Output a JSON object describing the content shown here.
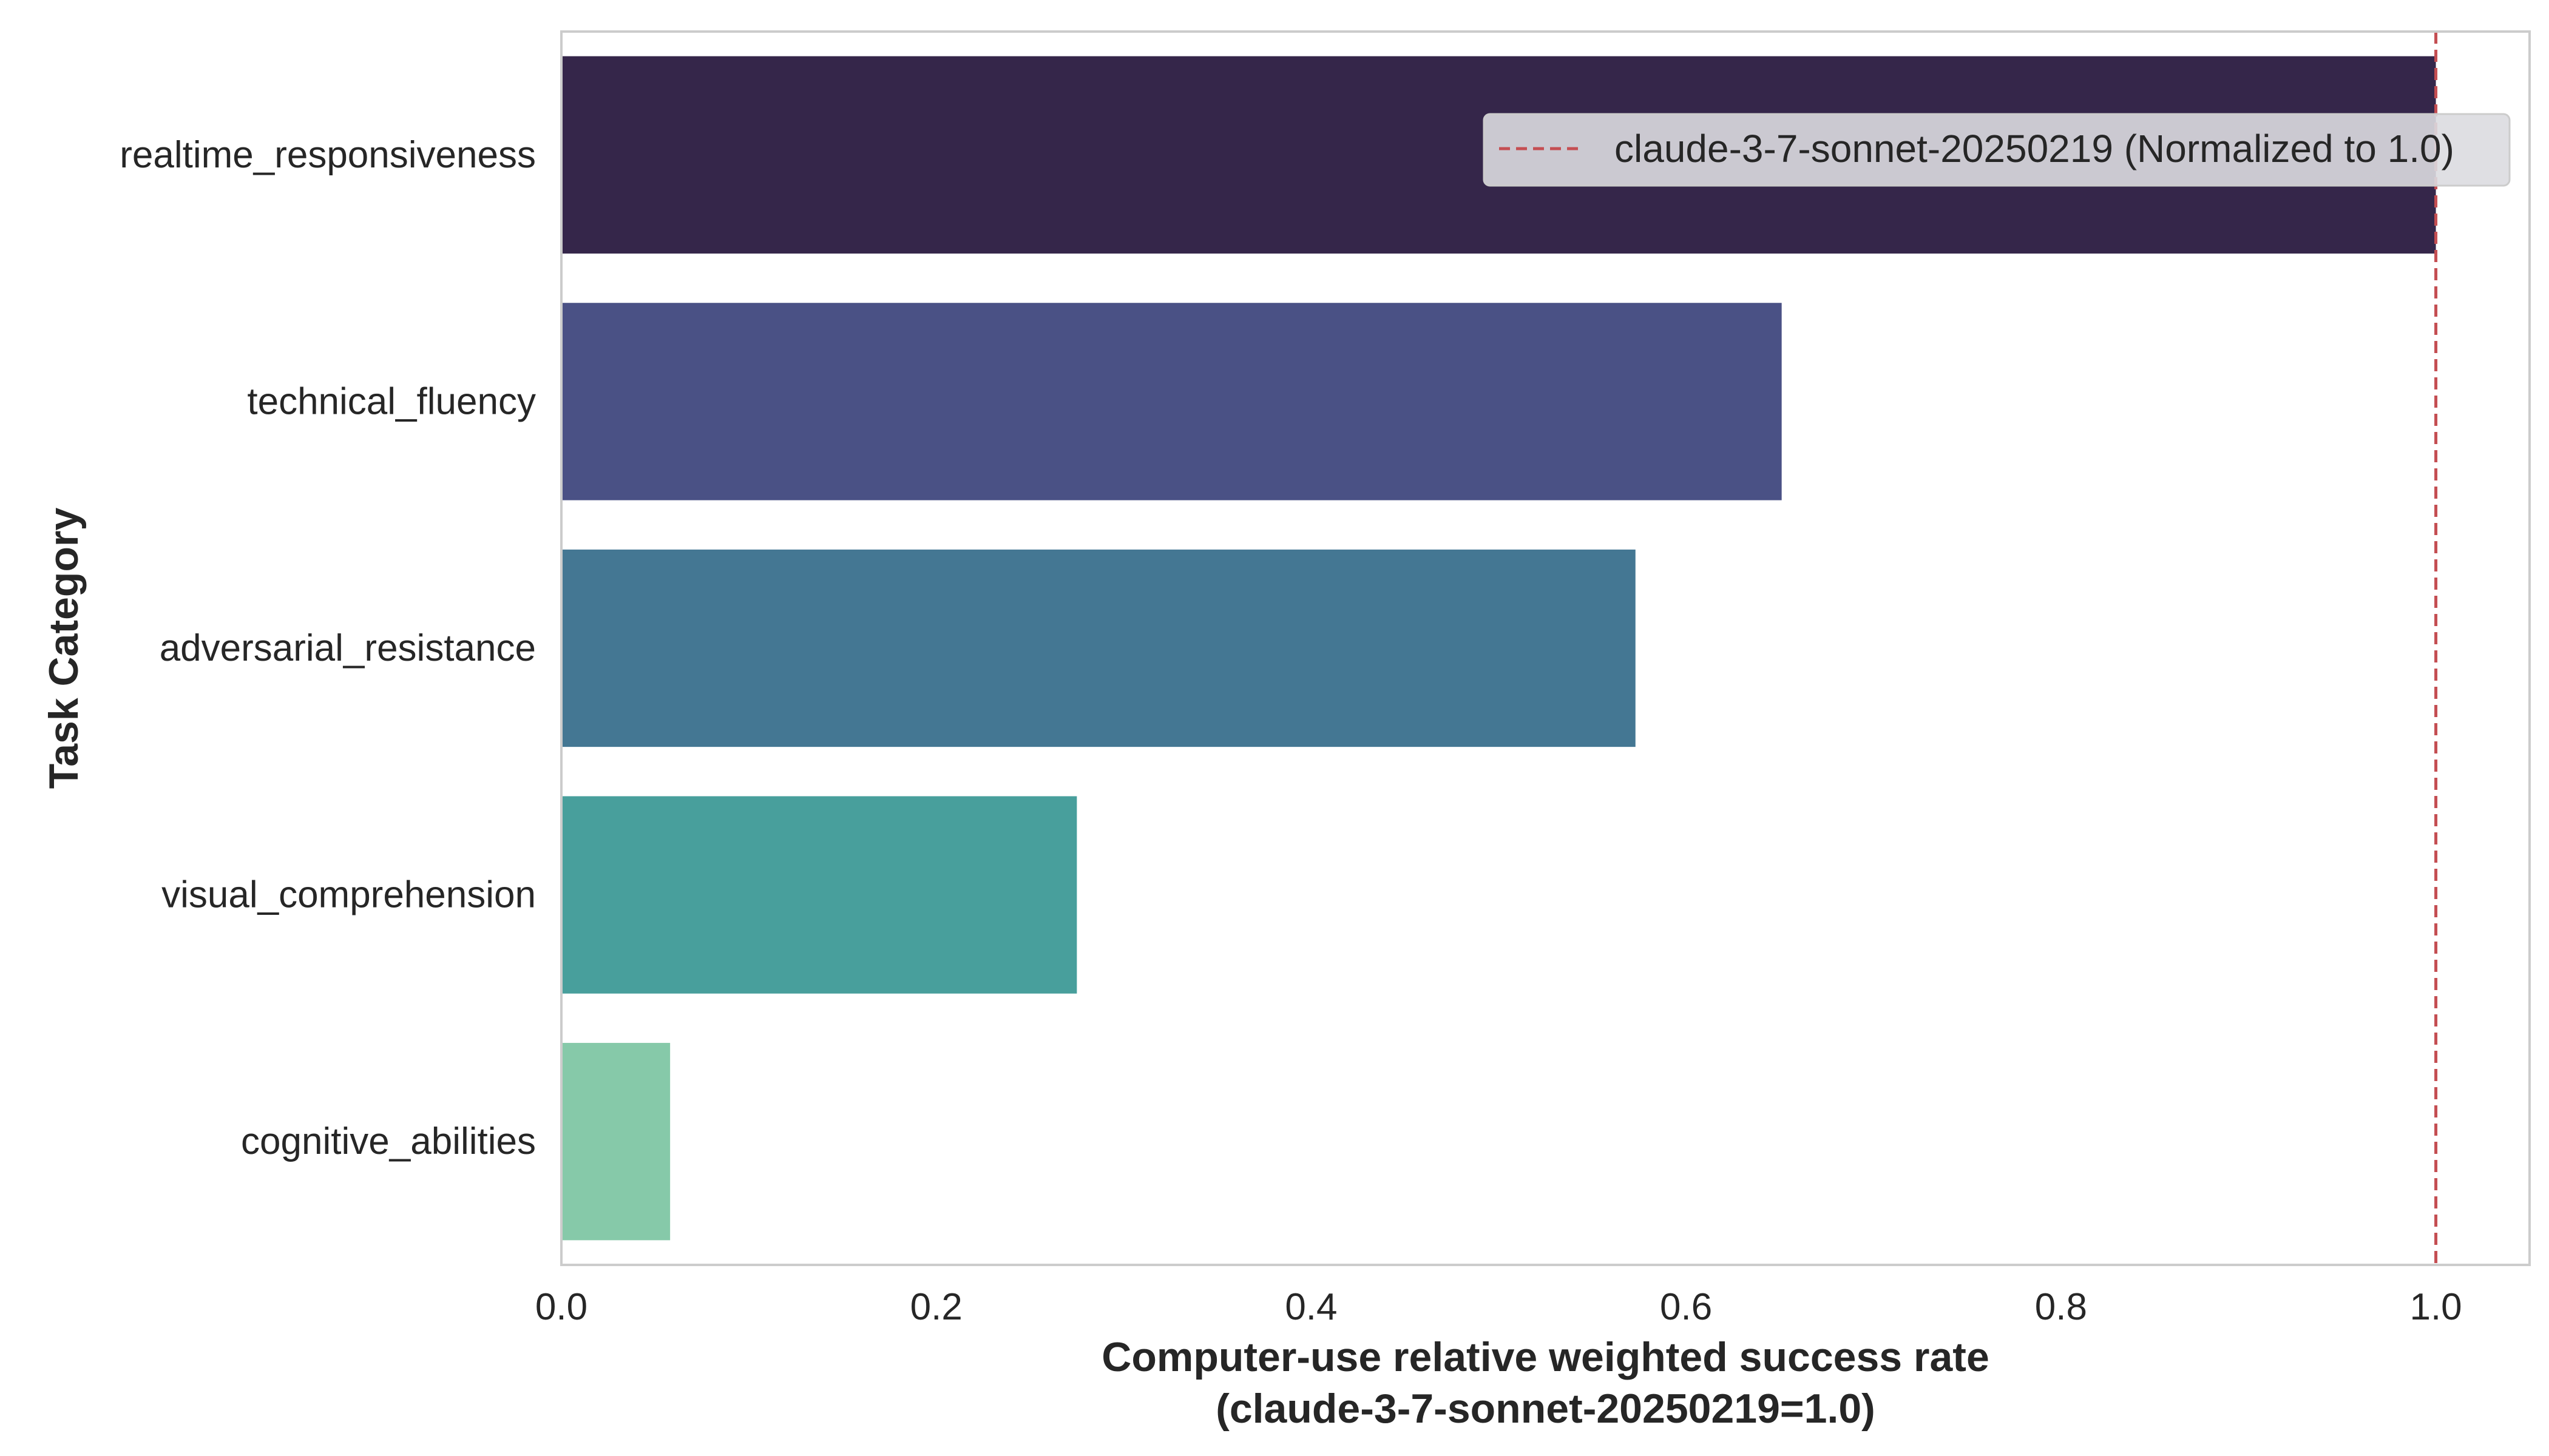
{
  "chart_data": {
    "type": "bar",
    "orientation": "horizontal",
    "categories": [
      "realtime_responsiveness",
      "technical_fluency",
      "adversarial_resistance",
      "visual_comprehension",
      "cognitive_abilities"
    ],
    "values": [
      1.0,
      0.651,
      0.573,
      0.275,
      0.058
    ],
    "colors": [
      "#35264a",
      "#4a5185",
      "#447793",
      "#489f9c",
      "#86c9a9"
    ],
    "xlabel_line1": "Computer-use relative weighted success rate",
    "xlabel_line2": "(claude-3-7-sonnet-20250219=1.0)",
    "ylabel": "Task Category",
    "xlim": [
      0.0,
      1.05
    ],
    "xticks": [
      0.0,
      0.2,
      0.4,
      0.6,
      0.8,
      1.0
    ],
    "xtick_labels": [
      "0.0",
      "0.2",
      "0.4",
      "0.6",
      "0.8",
      "1.0"
    ],
    "reference_line": {
      "value": 1.0,
      "style": "dashed",
      "color": "#c44e52",
      "label": "claude-3-7-sonnet-20250219 (Normalized to 1.0)"
    },
    "legend_position": "top-right",
    "grid": false
  }
}
